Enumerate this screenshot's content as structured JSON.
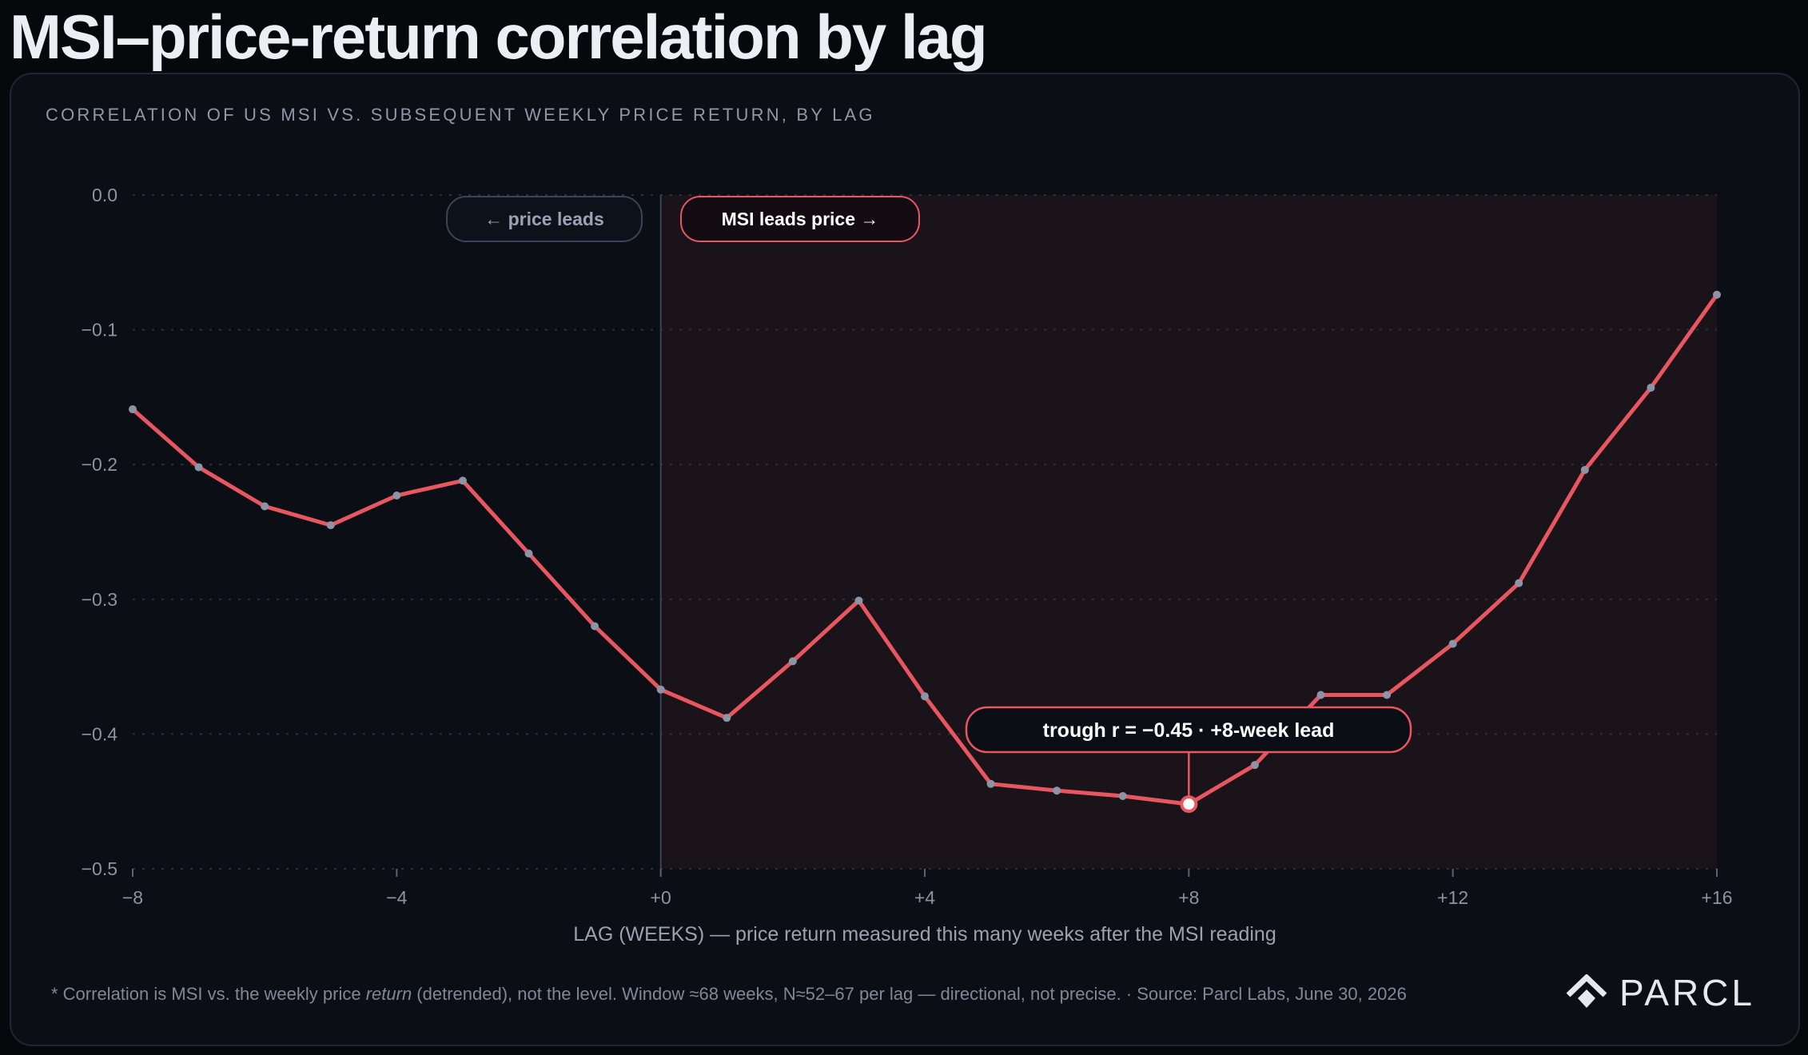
{
  "title": "MSI–price-return correlation by lag",
  "subtitle": "CORRELATION OF US MSI VS. SUBSEQUENT WEEKLY PRICE RETURN, BY LAG",
  "footnote": {
    "part1": "* Correlation is MSI vs. the weekly price ",
    "emphasis": "return",
    "part2": " (detrended), not the level. Window ≈68 weeks, N≈52–67 per lag — directional, not precise. · Source: Parcl Labs, June 30, 2026"
  },
  "brand": {
    "name": "PARCL",
    "icon": "parcl-logo-icon"
  },
  "colors": {
    "line": "#e8565f",
    "point": "#8d94a6",
    "shade": "#1a1319",
    "background": "#0b0e15"
  },
  "chart_data": {
    "type": "line",
    "xlabel": "LAG (WEEKS) — price return measured this many weeks after the MSI reading",
    "ylabel": "",
    "xlim": [
      -8,
      16
    ],
    "ylim": [
      -0.5,
      0.0
    ],
    "x_ticks": [
      -8,
      -4,
      0,
      4,
      8,
      12,
      16
    ],
    "x_tick_labels": [
      "−8",
      "−4",
      "+0",
      "+4",
      "+8",
      "+12",
      "+16"
    ],
    "y_ticks": [
      0.0,
      -0.1,
      -0.2,
      -0.3,
      -0.4,
      -0.5
    ],
    "y_tick_labels": [
      "0.0",
      "−0.1",
      "−0.2",
      "−0.3",
      "−0.4",
      "−0.5"
    ],
    "grid": "horizontal dotted",
    "shaded_region": {
      "from": 0,
      "to": 16
    },
    "region_labels": {
      "left": "← price leads",
      "right": "MSI leads price →"
    },
    "series": [
      {
        "x": [
          -8,
          -7,
          -6,
          -5,
          -4,
          -3,
          -2,
          -1,
          0,
          1,
          2,
          3,
          4,
          5,
          6,
          7,
          8,
          9,
          10,
          11,
          12,
          13,
          14,
          15,
          16
        ],
        "y": [
          -0.159,
          -0.202,
          -0.231,
          -0.245,
          -0.223,
          -0.212,
          -0.266,
          -0.32,
          -0.367,
          -0.388,
          -0.346,
          -0.301,
          -0.372,
          -0.437,
          -0.442,
          -0.446,
          -0.452,
          -0.423,
          -0.371,
          -0.371,
          -0.333,
          -0.288,
          -0.204,
          -0.143,
          -0.074
        ]
      }
    ],
    "annotation": {
      "text": "trough r = −0.45 · +8-week lead",
      "x": 8,
      "y": -0.452
    }
  }
}
